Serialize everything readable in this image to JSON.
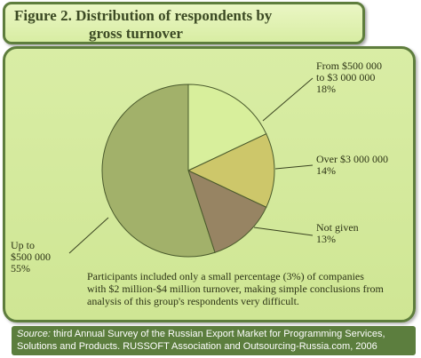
{
  "title": {
    "line1": "Figure 2. Distribution of respondents by",
    "line2": "gross turnover"
  },
  "colors": {
    "from_500k_to_3m": "#d8ef9c",
    "over_3m": "#cdc76a",
    "not_given": "#978463",
    "up_to_500k": "#a2b16a",
    "panel": "#d6eb9f",
    "border": "#5e7d3d",
    "source_bg": "#5c7e3e"
  },
  "chart_data": {
    "type": "pie",
    "slices": [
      {
        "label_lines": [
          "From $500 000",
          "to $3 000 000"
        ],
        "value_label": "18%",
        "value": 18
      },
      {
        "label_lines": [
          "Over $3 000 000"
        ],
        "value_label": "14%",
        "value": 14
      },
      {
        "label_lines": [
          "Not given"
        ],
        "value_label": "13%",
        "value": 13
      },
      {
        "label_lines": [
          "Up to",
          "$500 000"
        ],
        "value_label": "55%",
        "value": 55
      }
    ]
  },
  "note": {
    "line1": "Participants included only a small percentage (3%) of companies",
    "line2": "with $2 million-$4 million turnover, making simple conclusions from",
    "line3": "analysis of this group's respondents very difficult."
  },
  "source": {
    "label": "Source:",
    "line1": " third Annual Survey of the Russian Export Market for Programming Services,",
    "line2": "Solutions and Products. RUSSOFT Association and Outsourcing-Russia.com, 2006"
  }
}
